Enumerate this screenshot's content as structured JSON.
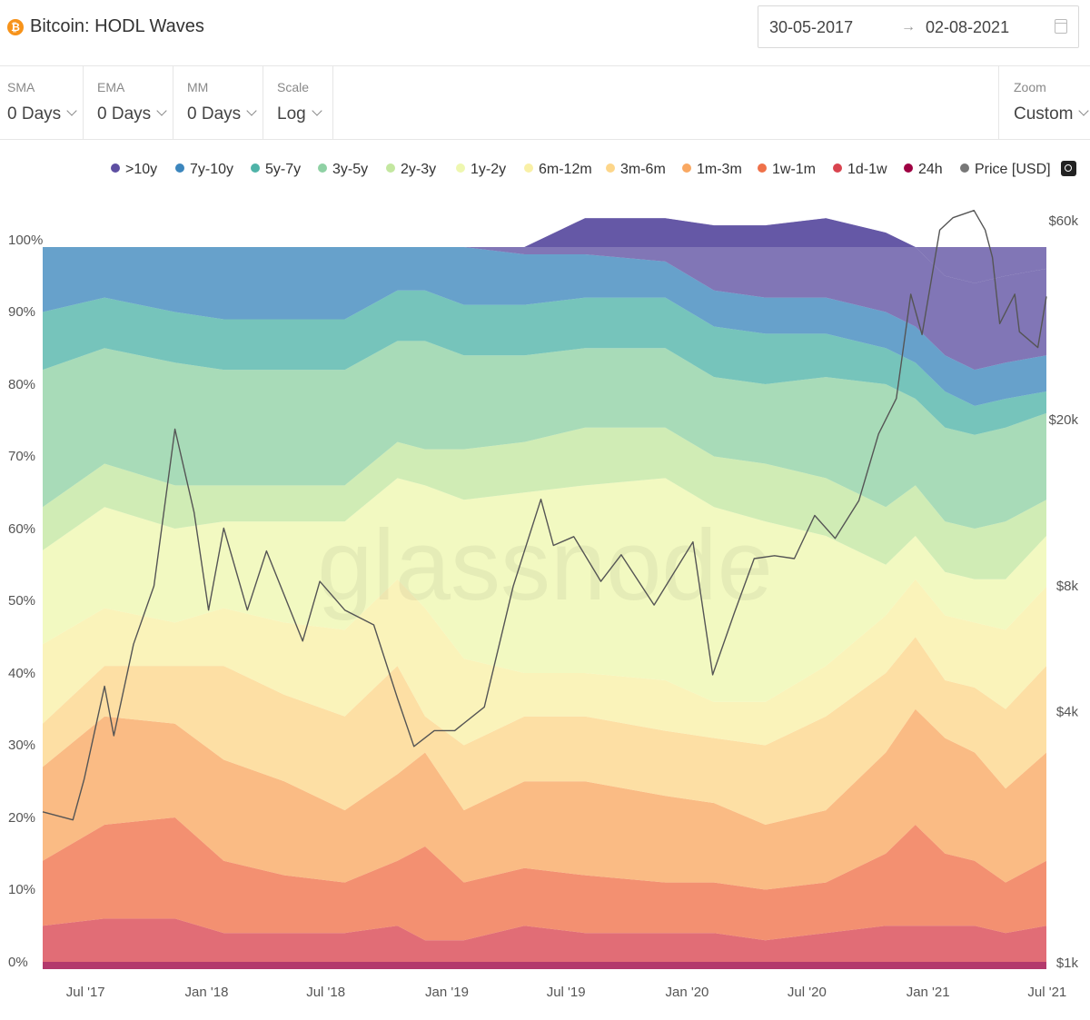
{
  "header": {
    "asset_icon": "bitcoin-icon",
    "title": "Bitcoin: HODL Waves",
    "date_from": "30-05-2017",
    "date_arrow": "→",
    "date_to": "02-08-2021",
    "calendar_icon": "calendar-icon"
  },
  "controls": [
    {
      "label": "SMA",
      "value": "0 Days"
    },
    {
      "label": "EMA",
      "value": "0 Days"
    },
    {
      "label": "MM",
      "value": "0 Days"
    },
    {
      "label": "Scale",
      "value": "Log"
    }
  ],
  "zoom": {
    "label": "Zoom",
    "value": "Custom"
  },
  "legend": [
    {
      "name": ">10y",
      "color": "#5e4fa2"
    },
    {
      "name": "7y-10y",
      "color": "#3c86bd"
    },
    {
      "name": "5y-7y",
      "color": "#4fb3a8"
    },
    {
      "name": "3y-5y",
      "color": "#8fd1a4"
    },
    {
      "name": "2y-3y",
      "color": "#c3e7a0"
    },
    {
      "name": "1y-2y",
      "color": "#eef7b0"
    },
    {
      "name": "6m-12m",
      "color": "#f9f0a6"
    },
    {
      "name": "3m-6m",
      "color": "#fdd68a"
    },
    {
      "name": "1m-3m",
      "color": "#f9a862"
    },
    {
      "name": "1w-1m",
      "color": "#ef7149"
    },
    {
      "name": "1d-1w",
      "color": "#d9444f"
    },
    {
      "name": "24h",
      "color": "#9e0142"
    },
    {
      "name": "Price [USD]",
      "color": "#777777"
    }
  ],
  "camera_icon": "camera-icon",
  "watermark": "glassnode",
  "chart_data": {
    "type": "area",
    "stacked": true,
    "scale": "log",
    "x": [
      "2017-06-01",
      "2017-09-01",
      "2017-12-17",
      "2018-03-01",
      "2018-06-01",
      "2018-09-01",
      "2018-11-20",
      "2019-01-01",
      "2019-03-01",
      "2019-06-01",
      "2019-09-01",
      "2020-01-01",
      "2020-03-15",
      "2020-06-01",
      "2020-09-01",
      "2020-12-01",
      "2021-01-15",
      "2021-03-01",
      "2021-04-15",
      "2021-06-01",
      "2021-08-02"
    ],
    "x_ticks": [
      "Jul '17",
      "Jan '18",
      "Jul '18",
      "Jan '19",
      "Jul '19",
      "Jan '20",
      "Jul '20",
      "Jan '21",
      "Jul '21"
    ],
    "y_ticks": [
      "0%",
      "10%",
      "20%",
      "30%",
      "40%",
      "50%",
      "60%",
      "70%",
      "80%",
      "90%",
      "100%"
    ],
    "ylim": [
      0,
      100
    ],
    "y2_ticks": [
      "$1k",
      "$4k",
      "$8k",
      "$20k",
      "$60k"
    ],
    "y2lim_log": [
      1000,
      60000
    ],
    "series": [
      {
        "name": "24h",
        "values": [
          1,
          1,
          1,
          1,
          1,
          1,
          1,
          1,
          1,
          1,
          1,
          1,
          1,
          1,
          1,
          1,
          1,
          1,
          1,
          1,
          1
        ]
      },
      {
        "name": "1d-1w",
        "values": [
          5,
          6,
          6,
          4,
          4,
          4,
          5,
          3,
          3,
          5,
          4,
          4,
          4,
          3,
          4,
          5,
          5,
          5,
          5,
          4,
          5
        ]
      },
      {
        "name": "1w-1m",
        "values": [
          9,
          13,
          14,
          10,
          8,
          7,
          9,
          13,
          8,
          8,
          8,
          7,
          7,
          7,
          7,
          10,
          14,
          10,
          9,
          7,
          9
        ]
      },
      {
        "name": "1m-3m",
        "values": [
          13,
          15,
          13,
          14,
          13,
          10,
          12,
          13,
          10,
          12,
          13,
          12,
          11,
          9,
          10,
          14,
          16,
          16,
          15,
          13,
          15
        ]
      },
      {
        "name": "3m-6m",
        "values": [
          6,
          7,
          8,
          13,
          12,
          13,
          15,
          5,
          9,
          9,
          9,
          9,
          9,
          11,
          13,
          11,
          10,
          8,
          9,
          11,
          12
        ]
      },
      {
        "name": "6m-12m",
        "values": [
          11,
          8,
          6,
          8,
          10,
          12,
          12,
          15,
          12,
          6,
          6,
          7,
          5,
          6,
          7,
          8,
          8,
          9,
          9,
          11,
          11
        ]
      },
      {
        "name": "1y-2y",
        "values": [
          13,
          14,
          13,
          12,
          14,
          15,
          14,
          17,
          22,
          25,
          26,
          28,
          27,
          25,
          18,
          7,
          6,
          6,
          6,
          7,
          7
        ]
      },
      {
        "name": "2y-3y",
        "values": [
          6,
          6,
          6,
          5,
          5,
          5,
          5,
          5,
          7,
          7,
          8,
          7,
          7,
          8,
          8,
          8,
          7,
          7,
          7,
          8,
          5
        ]
      },
      {
        "name": "3y-5y",
        "values": [
          19,
          16,
          17,
          16,
          16,
          16,
          14,
          15,
          13,
          12,
          11,
          11,
          11,
          11,
          14,
          17,
          12,
          13,
          13,
          13,
          12
        ]
      },
      {
        "name": "5y-7y",
        "values": [
          8,
          7,
          7,
          7,
          7,
          7,
          7,
          7,
          7,
          7,
          7,
          7,
          7,
          7,
          6,
          5,
          5,
          5,
          4,
          4,
          3
        ]
      },
      {
        "name": "7y-10y",
        "values": [
          9,
          7,
          9,
          10,
          10,
          10,
          6,
          6,
          8,
          7,
          6,
          5,
          5,
          5,
          5,
          5,
          5,
          5,
          5,
          5,
          5
        ]
      },
      {
        "name": ">10y",
        "values": [
          0,
          0,
          0,
          0,
          0,
          0,
          0,
          0,
          0,
          1,
          5,
          6,
          9,
          10,
          11,
          11,
          11,
          11,
          12,
          12,
          12
        ]
      }
    ],
    "price": {
      "name": "Price [USD]",
      "x": [
        "2017-06-01",
        "2017-07-15",
        "2017-08-01",
        "2017-09-01",
        "2017-09-15",
        "2017-10-15",
        "2017-11-15",
        "2017-12-17",
        "2018-01-15",
        "2018-02-06",
        "2018-03-01",
        "2018-04-06",
        "2018-05-05",
        "2018-06-29",
        "2018-07-25",
        "2018-09-01",
        "2018-10-15",
        "2018-11-20",
        "2018-12-15",
        "2019-01-15",
        "2019-02-15",
        "2019-04-01",
        "2019-05-15",
        "2019-06-26",
        "2019-07-15",
        "2019-08-15",
        "2019-09-25",
        "2019-10-26",
        "2019-12-15",
        "2020-02-12",
        "2020-03-13",
        "2020-04-15",
        "2020-05-15",
        "2020-06-15",
        "2020-07-15",
        "2020-08-15",
        "2020-09-15",
        "2020-10-21",
        "2020-11-20",
        "2020-12-17",
        "2021-01-08",
        "2021-01-25",
        "2021-02-21",
        "2021-03-13",
        "2021-04-14",
        "2021-05-01",
        "2021-05-12",
        "2021-05-23",
        "2021-06-15",
        "2021-06-22",
        "2021-07-20",
        "2021-08-02"
      ],
      "values": [
        2300,
        2200,
        2750,
        4600,
        3500,
        5800,
        8000,
        19000,
        12000,
        7000,
        11000,
        7000,
        9700,
        5900,
        8200,
        7000,
        6450,
        4300,
        3300,
        3600,
        3600,
        4100,
        8000,
        12900,
        10000,
        10500,
        8200,
        9500,
        7200,
        10200,
        4900,
        6900,
        9300,
        9450,
        9300,
        11800,
        10400,
        12800,
        18500,
        22500,
        40000,
        32000,
        57000,
        61000,
        63500,
        57000,
        49000,
        34000,
        40000,
        32500,
        29800,
        39500
      ]
    }
  }
}
